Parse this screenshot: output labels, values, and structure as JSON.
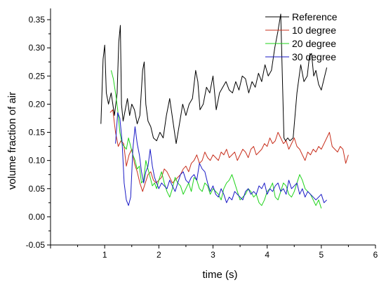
{
  "chart_data": {
    "type": "line",
    "title": "",
    "xlabel": "time (s)",
    "ylabel": "volume fraction of air",
    "xlim": [
      0,
      6
    ],
    "ylim": [
      -0.05,
      0.37
    ],
    "x_ticks": [
      1,
      2,
      3,
      4,
      5,
      6
    ],
    "x_tick_labels": [
      "1",
      "2",
      "3",
      "4",
      "5",
      "6"
    ],
    "y_ticks": [
      -0.05,
      0.0,
      0.05,
      0.1,
      0.15,
      0.2,
      0.25,
      0.3,
      0.35
    ],
    "y_tick_labels": [
      "-0.05",
      "0.00",
      "0.05",
      "0.10",
      "0.15",
      "0.20",
      "0.25",
      "0.30",
      "0.35"
    ],
    "grid": false,
    "legend_position": "top-right",
    "series": [
      {
        "name": "Reference",
        "color": "#000000",
        "x": [
          0.93,
          0.97,
          1.0,
          1.03,
          1.07,
          1.12,
          1.18,
          1.23,
          1.26,
          1.29,
          1.31,
          1.34,
          1.38,
          1.42,
          1.46,
          1.5,
          1.55,
          1.6,
          1.65,
          1.7,
          1.73,
          1.76,
          1.8,
          1.85,
          1.9,
          1.96,
          2.02,
          2.08,
          2.14,
          2.2,
          2.26,
          2.32,
          2.38,
          2.44,
          2.5,
          2.56,
          2.62,
          2.68,
          2.72,
          2.76,
          2.82,
          2.88,
          2.94,
          3.0,
          3.06,
          3.12,
          3.18,
          3.24,
          3.3,
          3.36,
          3.42,
          3.48,
          3.54,
          3.6,
          3.66,
          3.72,
          3.78,
          3.84,
          3.9,
          3.96,
          4.02,
          4.08,
          4.14,
          4.2,
          4.25,
          4.28,
          4.31,
          4.34,
          4.38,
          4.42,
          4.48,
          4.55,
          4.62,
          4.68,
          4.74,
          4.78,
          4.82,
          4.86,
          4.9,
          4.95,
          5.0,
          5.05,
          5.1
        ],
        "y": [
          0.165,
          0.28,
          0.305,
          0.22,
          0.2,
          0.22,
          0.18,
          0.22,
          0.31,
          0.34,
          0.2,
          0.17,
          0.19,
          0.21,
          0.18,
          0.2,
          0.19,
          0.165,
          0.18,
          0.26,
          0.275,
          0.2,
          0.17,
          0.16,
          0.14,
          0.135,
          0.15,
          0.14,
          0.18,
          0.21,
          0.17,
          0.13,
          0.165,
          0.2,
          0.18,
          0.2,
          0.21,
          0.26,
          0.24,
          0.19,
          0.2,
          0.23,
          0.22,
          0.25,
          0.19,
          0.22,
          0.23,
          0.24,
          0.225,
          0.22,
          0.24,
          0.225,
          0.25,
          0.245,
          0.22,
          0.24,
          0.23,
          0.255,
          0.24,
          0.27,
          0.25,
          0.26,
          0.3,
          0.33,
          0.36,
          0.25,
          0.14,
          0.135,
          0.14,
          0.135,
          0.14,
          0.22,
          0.27,
          0.24,
          0.25,
          0.285,
          0.29,
          0.25,
          0.26,
          0.235,
          0.225,
          0.245,
          0.265
        ]
      },
      {
        "name": "10 degree",
        "color": "#c8301e",
        "x": [
          1.1,
          1.15,
          1.2,
          1.25,
          1.3,
          1.35,
          1.4,
          1.45,
          1.5,
          1.55,
          1.6,
          1.65,
          1.7,
          1.75,
          1.8,
          1.85,
          1.9,
          1.95,
          2.0,
          2.05,
          2.1,
          2.15,
          2.2,
          2.25,
          2.3,
          2.35,
          2.4,
          2.45,
          2.5,
          2.55,
          2.6,
          2.65,
          2.7,
          2.75,
          2.8,
          2.85,
          2.9,
          2.95,
          3.0,
          3.05,
          3.1,
          3.15,
          3.2,
          3.25,
          3.3,
          3.35,
          3.4,
          3.45,
          3.5,
          3.55,
          3.6,
          3.65,
          3.7,
          3.75,
          3.8,
          3.85,
          3.9,
          3.95,
          4.0,
          4.05,
          4.1,
          4.15,
          4.2,
          4.25,
          4.3,
          4.35,
          4.4,
          4.45,
          4.5,
          4.55,
          4.6,
          4.65,
          4.7,
          4.75,
          4.8,
          4.85,
          4.9,
          4.95,
          5.0,
          5.05,
          5.1,
          5.15,
          5.2,
          5.25,
          5.3,
          5.35,
          5.4,
          5.45,
          5.5
        ],
        "y": [
          0.185,
          0.19,
          0.15,
          0.125,
          0.135,
          0.13,
          0.09,
          0.11,
          0.12,
          0.095,
          0.08,
          0.06,
          0.045,
          0.06,
          0.075,
          0.08,
          0.065,
          0.06,
          0.065,
          0.07,
          0.085,
          0.08,
          0.07,
          0.06,
          0.065,
          0.07,
          0.075,
          0.085,
          0.09,
          0.08,
          0.095,
          0.1,
          0.11,
          0.095,
          0.1,
          0.115,
          0.105,
          0.1,
          0.11,
          0.105,
          0.1,
          0.115,
          0.11,
          0.12,
          0.105,
          0.11,
          0.115,
          0.1,
          0.11,
          0.12,
          0.115,
          0.105,
          0.12,
          0.125,
          0.11,
          0.115,
          0.12,
          0.13,
          0.125,
          0.14,
          0.13,
          0.135,
          0.15,
          0.14,
          0.13,
          0.135,
          0.12,
          0.13,
          0.14,
          0.125,
          0.12,
          0.11,
          0.1,
          0.115,
          0.11,
          0.12,
          0.115,
          0.125,
          0.12,
          0.13,
          0.14,
          0.15,
          0.125,
          0.12,
          0.115,
          0.125,
          0.12,
          0.095,
          0.11
        ]
      },
      {
        "name": "20 degree",
        "color": "#1fd31a",
        "x": [
          1.12,
          1.16,
          1.2,
          1.24,
          1.28,
          1.32,
          1.36,
          1.4,
          1.44,
          1.48,
          1.52,
          1.56,
          1.6,
          1.64,
          1.68,
          1.72,
          1.76,
          1.8,
          1.84,
          1.88,
          1.92,
          1.96,
          2.0,
          2.05,
          2.1,
          2.15,
          2.2,
          2.25,
          2.3,
          2.35,
          2.4,
          2.45,
          2.5,
          2.55,
          2.6,
          2.65,
          2.7,
          2.75,
          2.8,
          2.85,
          2.9,
          2.95,
          3.0,
          3.05,
          3.1,
          3.15,
          3.2,
          3.25,
          3.3,
          3.35,
          3.4,
          3.45,
          3.5,
          3.55,
          3.6,
          3.65,
          3.7,
          3.75,
          3.8,
          3.85,
          3.9,
          3.95,
          4.0,
          4.05,
          4.1,
          4.15,
          4.2,
          4.25,
          4.3,
          4.35,
          4.4,
          4.45,
          4.5,
          4.55,
          4.6,
          4.65,
          4.7,
          4.75,
          4.8,
          4.85,
          4.9,
          4.95,
          5.0
        ],
        "y": [
          0.26,
          0.245,
          0.22,
          0.19,
          0.15,
          0.13,
          0.125,
          0.12,
          0.14,
          0.125,
          0.11,
          0.1,
          0.085,
          0.09,
          0.06,
          0.065,
          0.1,
          0.085,
          0.07,
          0.055,
          0.06,
          0.05,
          0.065,
          0.08,
          0.06,
          0.045,
          0.035,
          0.05,
          0.07,
          0.06,
          0.055,
          0.04,
          0.05,
          0.06,
          0.045,
          0.07,
          0.065,
          0.05,
          0.045,
          0.06,
          0.055,
          0.04,
          0.05,
          0.045,
          0.04,
          0.03,
          0.05,
          0.06,
          0.065,
          0.075,
          0.06,
          0.045,
          0.03,
          0.035,
          0.04,
          0.05,
          0.045,
          0.035,
          0.04,
          0.025,
          0.02,
          0.03,
          0.045,
          0.05,
          0.06,
          0.035,
          0.03,
          0.045,
          0.06,
          0.055,
          0.04,
          0.035,
          0.045,
          0.06,
          0.075,
          0.065,
          0.05,
          0.045,
          0.04,
          0.03,
          0.02,
          0.03,
          0.015
        ]
      },
      {
        "name": "30 degree",
        "color": "#1a1ac6",
        "x": [
          1.2,
          1.24,
          1.28,
          1.32,
          1.36,
          1.4,
          1.44,
          1.48,
          1.52,
          1.56,
          1.6,
          1.64,
          1.68,
          1.72,
          1.76,
          1.8,
          1.84,
          1.88,
          1.92,
          1.96,
          2.0,
          2.05,
          2.1,
          2.15,
          2.2,
          2.25,
          2.3,
          2.35,
          2.4,
          2.45,
          2.5,
          2.55,
          2.6,
          2.65,
          2.7,
          2.75,
          2.8,
          2.85,
          2.9,
          2.95,
          3.0,
          3.05,
          3.1,
          3.15,
          3.2,
          3.25,
          3.3,
          3.35,
          3.4,
          3.45,
          3.5,
          3.55,
          3.6,
          3.65,
          3.7,
          3.75,
          3.8,
          3.85,
          3.9,
          3.95,
          4.0,
          4.05,
          4.1,
          4.15,
          4.2,
          4.25,
          4.3,
          4.35,
          4.4,
          4.45,
          4.5,
          4.55,
          4.6,
          4.65,
          4.7,
          4.75,
          4.8,
          4.85,
          4.9,
          4.95,
          5.0,
          5.05,
          5.1
        ],
        "y": [
          0.13,
          0.185,
          0.175,
          0.135,
          0.06,
          0.03,
          0.02,
          0.035,
          0.12,
          0.16,
          0.13,
          0.11,
          0.08,
          0.06,
          0.08,
          0.09,
          0.12,
          0.09,
          0.07,
          0.06,
          0.05,
          0.06,
          0.055,
          0.05,
          0.065,
          0.055,
          0.045,
          0.06,
          0.075,
          0.08,
          0.065,
          0.06,
          0.07,
          0.075,
          0.065,
          0.095,
          0.085,
          0.08,
          0.06,
          0.045,
          0.055,
          0.04,
          0.035,
          0.05,
          0.04,
          0.025,
          0.035,
          0.03,
          0.045,
          0.04,
          0.035,
          0.03,
          0.045,
          0.05,
          0.04,
          0.045,
          0.04,
          0.055,
          0.05,
          0.06,
          0.04,
          0.05,
          0.045,
          0.055,
          0.06,
          0.045,
          0.05,
          0.04,
          0.065,
          0.05,
          0.055,
          0.06,
          0.04,
          0.05,
          0.035,
          0.045,
          0.04,
          0.035,
          0.03,
          0.035,
          0.04,
          0.025,
          0.03
        ]
      }
    ]
  }
}
